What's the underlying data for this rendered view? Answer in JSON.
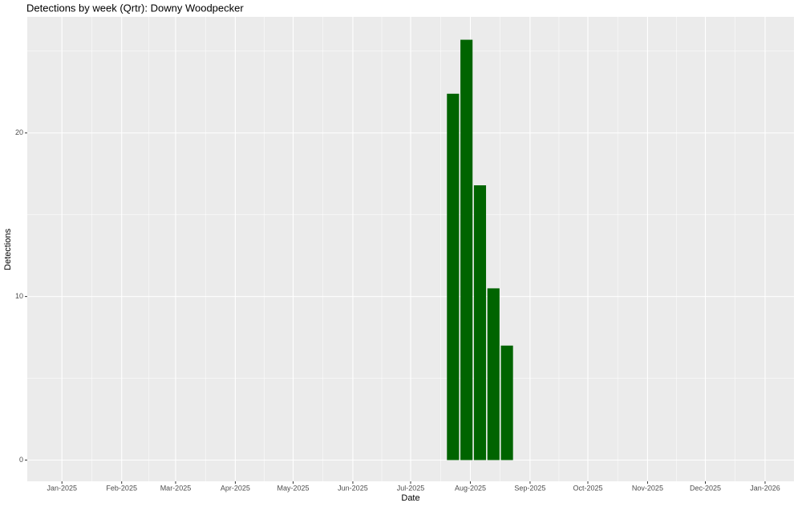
{
  "chart_data": {
    "type": "bar",
    "title": "Detections by week (Qrtr): Downy Woodpecker",
    "x_label": "Date",
    "y_label": "Detections",
    "x": [
      "2025-07-23",
      "2025-07-30",
      "2025-08-06",
      "2025-08-13",
      "2025-08-20"
    ],
    "values": [
      22.4,
      25.7,
      16.8,
      10.5,
      7.0
    ],
    "color": "#006400",
    "xlim": [
      "2024-12-14",
      "2026-01-16"
    ],
    "xticks": [
      {
        "value": "2025-01",
        "label": "Jan-2025"
      },
      {
        "value": "2025-02",
        "label": "Feb-2025"
      },
      {
        "value": "2025-03",
        "label": "Mar-2025"
      },
      {
        "value": "2025-04",
        "label": "Apr-2025"
      },
      {
        "value": "2025-05",
        "label": "May-2025"
      },
      {
        "value": "2025-06",
        "label": "Jun-2025"
      },
      {
        "value": "2025-07",
        "label": "Jul-2025"
      },
      {
        "value": "2025-08",
        "label": "Aug-2025"
      },
      {
        "value": "2025-09",
        "label": "Sep-2025"
      },
      {
        "value": "2025-10",
        "label": "Oct-2025"
      },
      {
        "value": "2025-11",
        "label": "Nov-2025"
      },
      {
        "value": "2025-12",
        "label": "Dec-2025"
      },
      {
        "value": "2026-01",
        "label": "Jan-2026"
      }
    ],
    "ylim": [
      -1.3,
      27.1
    ],
    "yticks": [
      0,
      10,
      20
    ],
    "grid": true
  }
}
